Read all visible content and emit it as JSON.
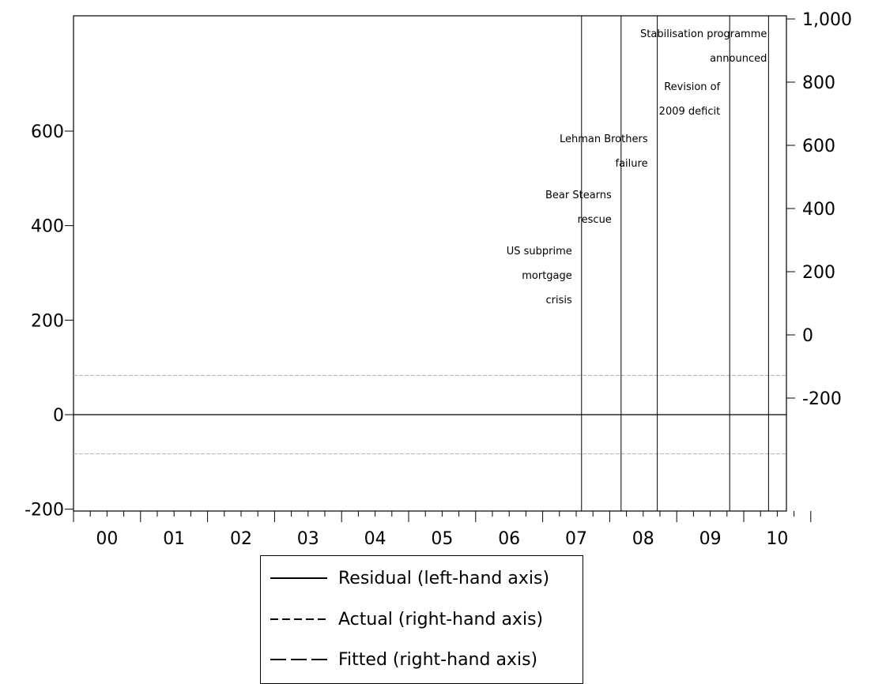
{
  "chart_data": {
    "type": "line",
    "title": "",
    "x_categories": [
      "00",
      "01",
      "02",
      "03",
      "04",
      "05",
      "06",
      "07",
      "08",
      "09",
      "10"
    ],
    "left_axis": {
      "ticks": [
        "600",
        "400",
        "200",
        "0",
        "-200"
      ],
      "values": [
        600,
        400,
        200,
        0,
        -200
      ],
      "ylim": [
        -200,
        800
      ]
    },
    "right_axis": {
      "ticks": [
        "1,000",
        "800",
        "600",
        "400",
        "200",
        "0",
        "-200"
      ],
      "values": [
        1000,
        800,
        600,
        400,
        200,
        0,
        -200
      ],
      "ylim": [
        -400,
        1000
      ]
    },
    "series": [
      {
        "name": "Residual (left-hand axis)",
        "style": "solid",
        "axis": "left",
        "x": [
          "2000-01",
          "2010-12"
        ],
        "values": [
          0,
          0
        ]
      },
      {
        "name": "Actual (right-hand axis)",
        "style": "short-dash",
        "axis": "right",
        "values": []
      },
      {
        "name": "Fitted (right-hand axis)",
        "style": "long-dash",
        "axis": "right",
        "values": []
      }
    ],
    "reference_lines": {
      "left_axis_values": [
        83,
        -83
      ],
      "color": "#b0b0b0"
    },
    "events": [
      {
        "date": "2007.58",
        "lines": [
          "US subprime",
          "mortgage",
          "crisis"
        ]
      },
      {
        "date": "2008.17",
        "lines": [
          "Bear Stearns",
          "rescue"
        ]
      },
      {
        "date": "2008.71",
        "lines": [
          "Lehman Brothers",
          "failure"
        ]
      },
      {
        "date": "2009.79",
        "lines": [
          "Revision of",
          "2009 deficit"
        ]
      },
      {
        "date": "2010.37",
        "lines": [
          "Stabilisation programme",
          "announced"
        ]
      }
    ],
    "legend": {
      "placement": "bottom-center",
      "entries": [
        "Residual (left-hand axis)",
        "Actual (right-hand axis)",
        "Fitted (right-hand axis)"
      ]
    },
    "grid": false
  }
}
